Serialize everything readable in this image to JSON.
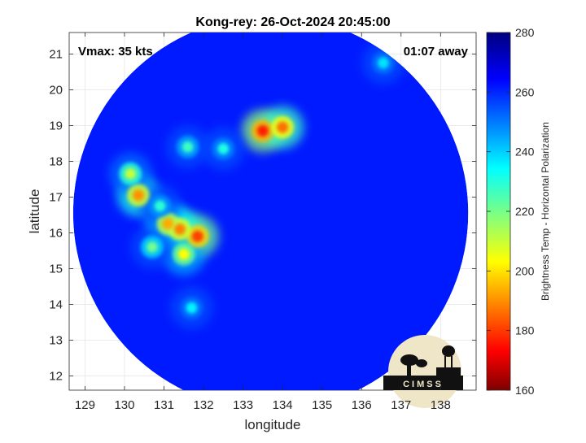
{
  "chart_data": {
    "type": "heatmap",
    "title": "Kong-rey: 26-Oct-2024 20:45:00",
    "xlabel": "longitude",
    "ylabel": "latitude",
    "xlim": [
      128.6,
      138.9
    ],
    "ylim": [
      11.6,
      21.6
    ],
    "xticks": [
      129,
      130,
      131,
      132,
      133,
      134,
      135,
      136,
      137,
      138
    ],
    "yticks": [
      12,
      13,
      14,
      15,
      16,
      17,
      18,
      19,
      20,
      21
    ],
    "grid": true,
    "annotations": {
      "vmax": "Vmax: 35 kts",
      "time_away": "01:07 away"
    },
    "colorbar": {
      "label": "Brightness Temp - Horizontal Polarization",
      "min": 160,
      "max": 280,
      "ticks": [
        160,
        180,
        200,
        220,
        240,
        260,
        280
      ],
      "colormap": "jet"
    },
    "swath": {
      "center_lon": 133.7,
      "center_lat": 16.55,
      "radius_deg": 5.0
    },
    "background_tb": 262,
    "features": [
      {
        "lon": 133.5,
        "lat": 18.85,
        "tb": 178
      },
      {
        "lon": 134.0,
        "lat": 18.95,
        "tb": 188
      },
      {
        "lon": 131.85,
        "lat": 15.9,
        "tb": 182
      },
      {
        "lon": 131.4,
        "lat": 16.1,
        "tb": 190
      },
      {
        "lon": 131.1,
        "lat": 16.25,
        "tb": 195
      },
      {
        "lon": 130.35,
        "lat": 17.05,
        "tb": 192
      },
      {
        "lon": 130.15,
        "lat": 17.65,
        "tb": 212
      },
      {
        "lon": 131.5,
        "lat": 15.4,
        "tb": 205
      },
      {
        "lon": 130.7,
        "lat": 15.6,
        "tb": 222
      },
      {
        "lon": 131.6,
        "lat": 18.4,
        "tb": 228
      },
      {
        "lon": 132.5,
        "lat": 18.35,
        "tb": 232
      },
      {
        "lon": 136.55,
        "lat": 20.75,
        "tb": 238
      },
      {
        "lon": 131.7,
        "lat": 13.9,
        "tb": 236
      },
      {
        "lon": 130.9,
        "lat": 16.75,
        "tb": 230
      }
    ],
    "logo_text": "CIMSS"
  }
}
